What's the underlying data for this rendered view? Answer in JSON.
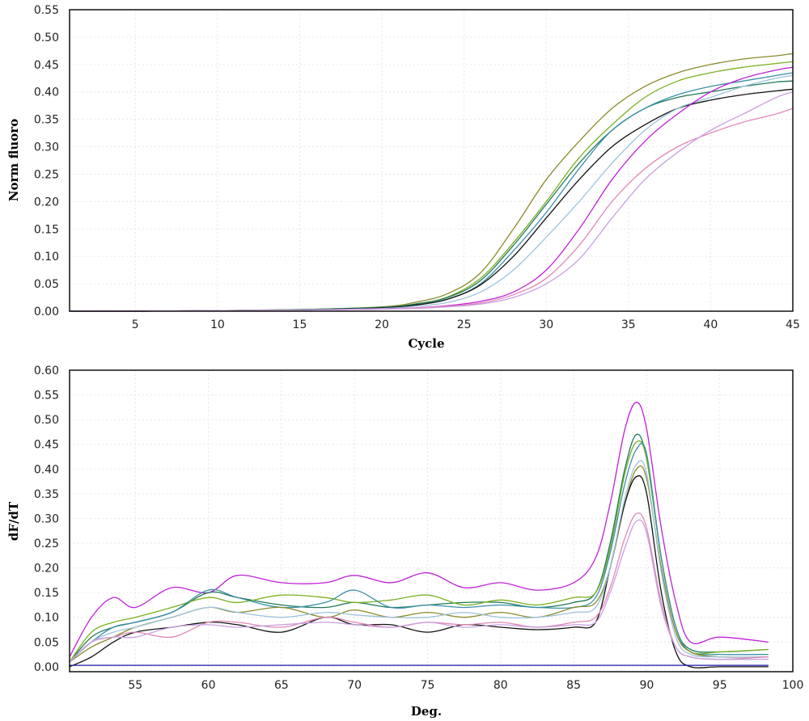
{
  "chart_data": [
    {
      "type": "line",
      "xlabel": "Cycle",
      "ylabel": "Norm fluoro",
      "xlim": [
        1,
        45
      ],
      "ylim": [
        0,
        0.55
      ],
      "xticks": [
        5,
        10,
        15,
        20,
        25,
        30,
        35,
        40,
        45
      ],
      "yticks": [
        0.0,
        0.05,
        0.1,
        0.15,
        0.2,
        0.25,
        0.3,
        0.35,
        0.4,
        0.45,
        0.5,
        0.55
      ],
      "ytick_labels": [
        "0.00",
        "0.05",
        "0.10",
        "0.15",
        "0.20",
        "0.25",
        "0.30",
        "0.35",
        "0.40",
        "0.45",
        "0.50",
        "0.55"
      ],
      "grid": true,
      "x": [
        1,
        5,
        10,
        15,
        20,
        22,
        24,
        26,
        28,
        30,
        32,
        34,
        36,
        38,
        40,
        42,
        44,
        45
      ],
      "series": [
        {
          "color": "#8a8a2a",
          "values": [
            0,
            0,
            0.001,
            0.003,
            0.008,
            0.016,
            0.032,
            0.07,
            0.15,
            0.24,
            0.31,
            0.37,
            0.41,
            0.435,
            0.45,
            0.46,
            0.466,
            0.47
          ]
        },
        {
          "color": "#7ab020",
          "values": [
            0,
            0,
            0.001,
            0.003,
            0.007,
            0.013,
            0.026,
            0.06,
            0.125,
            0.2,
            0.28,
            0.34,
            0.39,
            0.42,
            0.435,
            0.445,
            0.452,
            0.455
          ]
        },
        {
          "color": "#1e7a5a",
          "values": [
            0,
            0,
            0.001,
            0.003,
            0.007,
            0.013,
            0.025,
            0.056,
            0.12,
            0.195,
            0.27,
            0.33,
            0.37,
            0.39,
            0.4,
            0.41,
            0.418,
            0.42
          ]
        },
        {
          "color": "#3a8fa8",
          "values": [
            0,
            0,
            0.001,
            0.002,
            0.006,
            0.011,
            0.022,
            0.05,
            0.11,
            0.18,
            0.26,
            0.33,
            0.37,
            0.395,
            0.41,
            0.42,
            0.43,
            0.435
          ]
        },
        {
          "color": "#111111",
          "values": [
            0,
            0,
            0.001,
            0.002,
            0.006,
            0.011,
            0.022,
            0.048,
            0.1,
            0.17,
            0.24,
            0.3,
            0.34,
            0.37,
            0.385,
            0.395,
            0.402,
            0.405
          ]
        },
        {
          "color": "#9cc2dc",
          "values": [
            0,
            0,
            0.001,
            0.002,
            0.005,
            0.009,
            0.016,
            0.035,
            0.075,
            0.135,
            0.2,
            0.27,
            0.33,
            0.37,
            0.39,
            0.41,
            0.425,
            0.43
          ]
        },
        {
          "color": "#c020d8",
          "values": [
            0,
            0,
            0.001,
            0.002,
            0.004,
            0.006,
            0.01,
            0.018,
            0.035,
            0.075,
            0.15,
            0.24,
            0.31,
            0.36,
            0.4,
            0.425,
            0.44,
            0.445
          ]
        },
        {
          "color": "#e088b8",
          "values": [
            0,
            0,
            0.001,
            0.002,
            0.004,
            0.006,
            0.009,
            0.015,
            0.03,
            0.06,
            0.12,
            0.2,
            0.26,
            0.3,
            0.325,
            0.345,
            0.36,
            0.37
          ]
        },
        {
          "color": "#c8a0e0",
          "values": [
            0,
            0,
            0.001,
            0.002,
            0.004,
            0.005,
            0.008,
            0.013,
            0.025,
            0.05,
            0.095,
            0.17,
            0.24,
            0.29,
            0.33,
            0.36,
            0.39,
            0.4
          ]
        }
      ]
    },
    {
      "type": "line",
      "xlabel": "Deg.",
      "ylabel": "dF/dT",
      "xlim": [
        50.5,
        100
      ],
      "ylim": [
        -0.01,
        0.6
      ],
      "xticks": [
        55,
        60,
        65,
        70,
        75,
        80,
        85,
        90,
        95,
        100
      ],
      "yticks": [
        0.0,
        0.05,
        0.1,
        0.15,
        0.2,
        0.25,
        0.3,
        0.35,
        0.4,
        0.45,
        0.5,
        0.55,
        0.6
      ],
      "ytick_labels": [
        "0.00",
        "0.05",
        "0.10",
        "0.15",
        "0.20",
        "0.25",
        "0.30",
        "0.35",
        "0.40",
        "0.45",
        "0.50",
        "0.55",
        "0.60"
      ],
      "grid": true,
      "x": [
        50.5,
        52,
        53.5,
        55,
        57.5,
        60,
        62,
        65,
        68,
        70,
        72.5,
        75,
        77.5,
        80,
        82.5,
        85,
        86.5,
        87.5,
        88.5,
        89.3,
        90,
        91,
        92,
        93,
        95,
        98.3
      ],
      "series": [
        {
          "color": "#c020d8",
          "values": [
            0.02,
            0.1,
            0.14,
            0.12,
            0.16,
            0.15,
            0.185,
            0.17,
            0.17,
            0.185,
            0.17,
            0.19,
            0.16,
            0.17,
            0.155,
            0.17,
            0.22,
            0.33,
            0.48,
            0.535,
            0.48,
            0.28,
            0.13,
            0.05,
            0.06,
            0.05
          ]
        },
        {
          "color": "#1e7a5a",
          "values": [
            0.01,
            0.06,
            0.08,
            0.09,
            0.11,
            0.15,
            0.14,
            0.125,
            0.12,
            0.13,
            0.12,
            0.125,
            0.13,
            0.13,
            0.12,
            0.13,
            0.15,
            0.25,
            0.4,
            0.47,
            0.42,
            0.22,
            0.08,
            0.035,
            0.03,
            0.035
          ]
        },
        {
          "color": "#7ab020",
          "values": [
            0.01,
            0.07,
            0.09,
            0.1,
            0.12,
            0.14,
            0.13,
            0.145,
            0.14,
            0.13,
            0.135,
            0.145,
            0.125,
            0.135,
            0.125,
            0.14,
            0.15,
            0.24,
            0.39,
            0.455,
            0.42,
            0.22,
            0.08,
            0.03,
            0.03,
            0.035
          ]
        },
        {
          "color": "#3a8fa8",
          "values": [
            0.01,
            0.05,
            0.08,
            0.09,
            0.11,
            0.155,
            0.14,
            0.12,
            0.13,
            0.155,
            0.12,
            0.125,
            0.12,
            0.125,
            0.12,
            0.12,
            0.14,
            0.23,
            0.37,
            0.44,
            0.43,
            0.22,
            0.08,
            0.03,
            0.025,
            0.025
          ]
        },
        {
          "color": "#8a8a2a",
          "values": [
            0.01,
            0.04,
            0.06,
            0.08,
            0.1,
            0.12,
            0.11,
            0.12,
            0.1,
            0.115,
            0.1,
            0.11,
            0.1,
            0.11,
            0.1,
            0.12,
            0.13,
            0.2,
            0.33,
            0.4,
            0.38,
            0.2,
            0.07,
            0.03,
            0.02,
            0.02
          ]
        },
        {
          "color": "#111111",
          "values": [
            0.0,
            0.02,
            0.05,
            0.07,
            0.08,
            0.09,
            0.085,
            0.07,
            0.1,
            0.085,
            0.085,
            0.07,
            0.085,
            0.08,
            0.075,
            0.08,
            0.09,
            0.2,
            0.33,
            0.385,
            0.35,
            0.15,
            0.03,
            0.0,
            0.0,
            0.0
          ]
        },
        {
          "color": "#9cc2dc",
          "values": [
            0.01,
            0.05,
            0.07,
            0.08,
            0.1,
            0.12,
            0.11,
            0.1,
            0.11,
            0.105,
            0.1,
            0.1,
            0.11,
            0.1,
            0.1,
            0.11,
            0.12,
            0.2,
            0.34,
            0.41,
            0.39,
            0.19,
            0.06,
            0.025,
            0.02,
            0.02
          ]
        },
        {
          "color": "#e088b8",
          "values": [
            0.01,
            0.05,
            0.06,
            0.07,
            0.06,
            0.09,
            0.09,
            0.08,
            0.1,
            0.09,
            0.08,
            0.09,
            0.085,
            0.09,
            0.08,
            0.09,
            0.1,
            0.16,
            0.26,
            0.31,
            0.28,
            0.13,
            0.04,
            0.02,
            0.015,
            0.02
          ]
        },
        {
          "color": "#c8a0e0",
          "values": [
            0.01,
            0.05,
            0.06,
            0.06,
            0.08,
            0.085,
            0.08,
            0.085,
            0.09,
            0.085,
            0.08,
            0.09,
            0.08,
            0.085,
            0.08,
            0.085,
            0.09,
            0.15,
            0.24,
            0.295,
            0.27,
            0.12,
            0.04,
            0.02,
            0.015,
            0.015
          ]
        },
        {
          "color": "#1a1aa0",
          "values": [
            0.003,
            0.003,
            0.003,
            0.003,
            0.003,
            0.003,
            0.003,
            0.003,
            0.003,
            0.003,
            0.003,
            0.003,
            0.003,
            0.003,
            0.003,
            0.003,
            0.003,
            0.003,
            0.003,
            0.003,
            0.003,
            0.003,
            0.003,
            0.003,
            0.003,
            0.003
          ]
        }
      ]
    }
  ]
}
